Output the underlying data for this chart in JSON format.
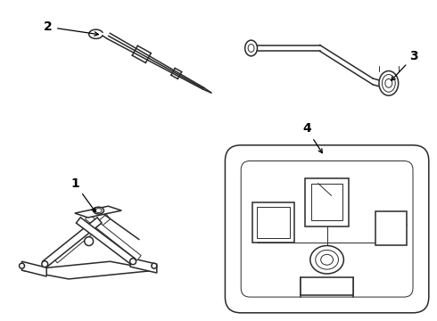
{
  "bg_color": "#ffffff",
  "line_color": "#2a2a2a",
  "label_color": "#000000",
  "lw_main": 1.1,
  "lw_thin": 0.7,
  "font_size": 10
}
